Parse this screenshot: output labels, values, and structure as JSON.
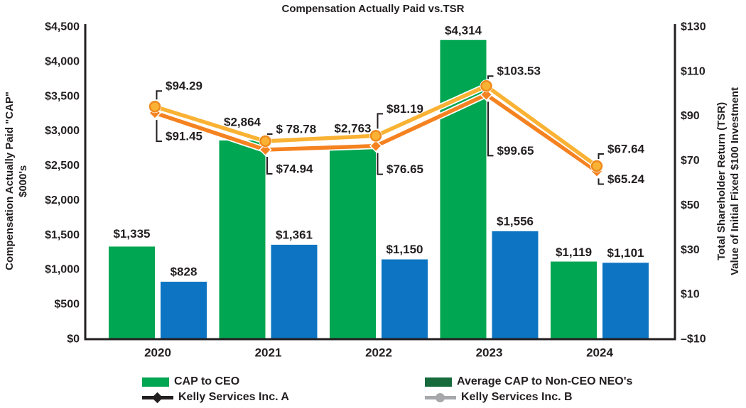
{
  "chart_data": {
    "type": "combo-bar-line",
    "title": "Compensation Actually Paid vs.TSR",
    "categories": [
      "2020",
      "2021",
      "2022",
      "2023",
      "2024"
    ],
    "bar_series": [
      {
        "name": "CAP to CEO",
        "color": "#00A651",
        "values": [
          1335,
          2864,
          2763,
          4314,
          1119
        ],
        "labels": [
          "$1,335",
          "$2,864",
          "$2,763",
          "$4,314",
          "$1,119"
        ],
        "label_dy": [
          -18,
          -26,
          -27,
          -13,
          -13
        ]
      },
      {
        "name": "Average CAP to Non-CEO NEO's",
        "color": "#0C74C2",
        "values": [
          828,
          1361,
          1150,
          1556,
          1101
        ],
        "labels": [
          "$828",
          "$1,361",
          "$1,150",
          "$1,556",
          "$1,101"
        ],
        "label_dy": [
          -14,
          -14,
          -14,
          -14,
          -14
        ]
      }
    ],
    "line_series": [
      {
        "name": "Kelly Services Inc. A",
        "color": "#F58220",
        "marker": "diamond",
        "values": [
          91.45,
          74.94,
          76.65,
          99.65,
          65.24
        ],
        "labels": [
          "$91.45",
          "$74.94",
          "$76.65",
          "$99.65",
          "$65.24"
        ],
        "label_side": "below",
        "label_dy": [
          33,
          27,
          33,
          79,
          11
        ]
      },
      {
        "name": "Kelly Services Inc. B",
        "color": "#F9B234",
        "marker": "circle",
        "marker_stroke": "#EE8A1E",
        "values": [
          94.29,
          78.78,
          81.19,
          103.53,
          67.64
        ],
        "labels": [
          "$94.29",
          "$ 78.78",
          "$81.19",
          "$103.53",
          "$67.64"
        ],
        "label_side": "above",
        "label_dy": [
          -29,
          -17,
          -38,
          -21,
          -24
        ]
      }
    ],
    "left_axis": {
      "title_lines": [
        "Compensation Actually Paid \"CAP\"",
        "$000's"
      ],
      "ticks": [
        "$4,500",
        "$4,000",
        "$3,500",
        "$3,000",
        "$2,500",
        "$2,000",
        "$1,500",
        "$1,000",
        "$500",
        "$0"
      ],
      "min": 0,
      "max": 4500
    },
    "right_axis": {
      "title_lines": [
        "Total Shareholder Return (TSR)",
        "Value of Initial Fixed $100 Investment"
      ],
      "ticks": [
        "$130",
        "$110",
        "$90",
        "$70",
        "$50",
        "$30",
        "$10",
        "–$10"
      ],
      "min": -10,
      "max": 130
    },
    "legend": [
      {
        "label": "CAP to CEO",
        "swatch": "rect",
        "color": "#00A651",
        "col": 0
      },
      {
        "label": "Average CAP to Non-CEO NEO's",
        "swatch": "rect",
        "color": "#166A3C",
        "col": 1
      },
      {
        "label": "Kelly Services Inc. A",
        "swatch": "line-diamond",
        "color": "#231F20",
        "col": 0
      },
      {
        "label": "Kelly Services Inc. B",
        "swatch": "line-circle",
        "color": "#A6A8AB",
        "col": 1
      }
    ],
    "axis_color": "#231F20",
    "text_color": "#231F20",
    "grid": false,
    "legend_position": "bottom"
  }
}
